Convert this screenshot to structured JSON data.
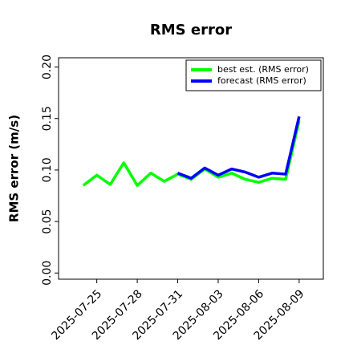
{
  "chart_data": {
    "type": "line",
    "title": "RMS error",
    "ylabel": "RMS error (m/s)",
    "x": [
      "2025-07-24",
      "2025-07-25",
      "2025-07-26",
      "2025-07-27",
      "2025-07-28",
      "2025-07-29",
      "2025-07-30",
      "2025-07-31",
      "2025-08-01",
      "2025-08-02",
      "2025-08-03",
      "2025-08-04",
      "2025-08-05",
      "2025-08-06",
      "2025-08-07",
      "2025-08-08",
      "2025-08-09"
    ],
    "series": [
      {
        "name": "best est. (RMS error)",
        "color": "#00ff00",
        "values": [
          0.085,
          0.095,
          0.086,
          0.107,
          0.085,
          0.097,
          0.089,
          0.096,
          0.091,
          0.101,
          0.093,
          0.097,
          0.091,
          0.088,
          0.092,
          0.091,
          0.148
        ]
      },
      {
        "name": "forecast (RMS error)",
        "color": "#0000ff",
        "values": [
          null,
          null,
          null,
          null,
          null,
          null,
          null,
          0.097,
          0.092,
          0.102,
          0.095,
          0.101,
          0.098,
          0.093,
          0.097,
          0.096,
          0.152
        ]
      }
    ],
    "xlim": [
      "2025-07-22T04:00Z",
      "2025-08-10T19:00Z"
    ],
    "xticks": [
      "2025-07-25",
      "2025-07-28",
      "2025-07-31",
      "2025-08-03",
      "2025-08-06",
      "2025-08-09"
    ],
    "highlight_tick": "2025-07-31",
    "highlight_color": "#228b22",
    "ylim": [
      -0.006,
      0.209
    ],
    "yticks": [
      {
        "value": 0,
        "label": "0.00"
      },
      0.05,
      {
        "value": 0.1,
        "label": "0.10"
      },
      0.15,
      {
        "value": 0.2,
        "label": "0.20"
      }
    ],
    "legend": "upper right",
    "grid": false
  }
}
